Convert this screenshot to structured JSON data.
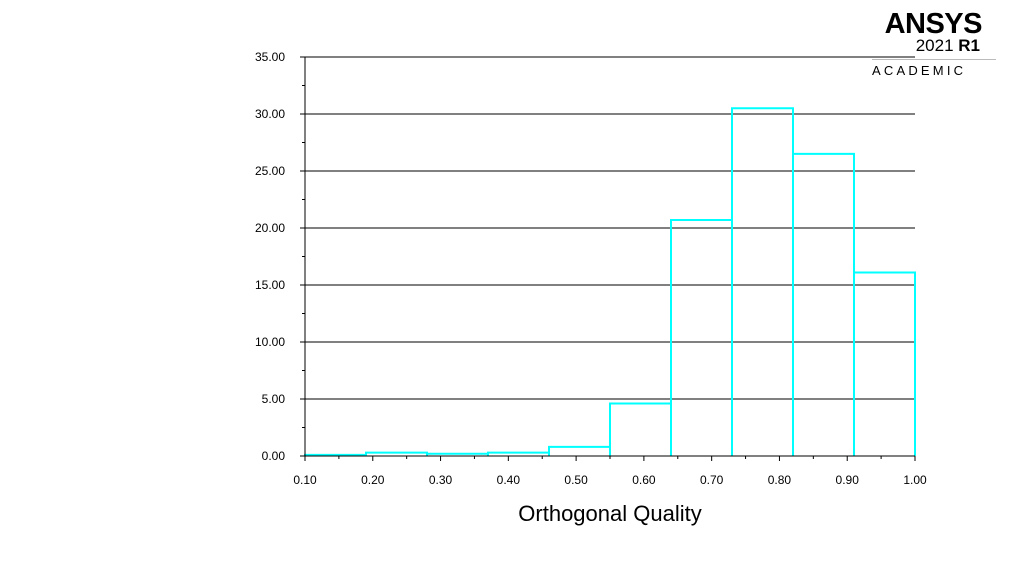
{
  "logo": {
    "name": "ANSYS",
    "version_year": "2021",
    "version_release": "R1",
    "edition": "ACADEMIC"
  },
  "chart_data": {
    "type": "bar",
    "xlabel": "Orthogonal Quality",
    "ylabel": "",
    "xlim": [
      0.1,
      1.0
    ],
    "ylim": [
      0,
      35
    ],
    "x_ticks": [
      "0.10",
      "0.20",
      "0.30",
      "0.40",
      "0.50",
      "0.60",
      "0.70",
      "0.80",
      "0.90",
      "1.00"
    ],
    "y_ticks": [
      "0.00",
      "5.00",
      "10.00",
      "15.00",
      "20.00",
      "25.00",
      "30.00",
      "35.00"
    ],
    "grid": true,
    "bin_edges": [
      0.1,
      0.19,
      0.28,
      0.37,
      0.46,
      0.55,
      0.64,
      0.73,
      0.82,
      0.91,
      1.0
    ],
    "values": [
      0.1,
      0.3,
      0.2,
      0.3,
      0.8,
      4.6,
      20.7,
      30.5,
      26.5,
      16.1
    ],
    "bar_color": "#00ffff",
    "grid_color": "#000000"
  }
}
